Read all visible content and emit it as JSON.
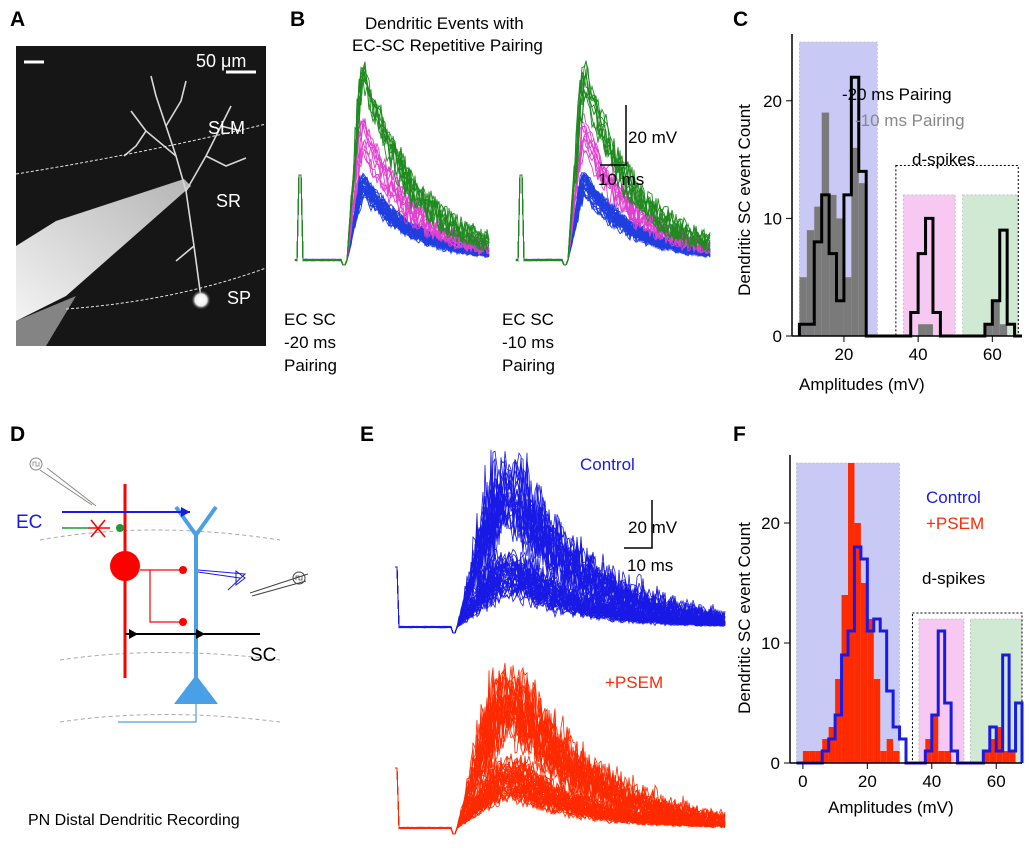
{
  "panels": {
    "A": {
      "letter": "A",
      "scale_bar": "50 μm",
      "layers": [
        "SLM",
        "SR",
        "SP"
      ]
    },
    "B": {
      "letter": "B",
      "title_line1": "Dendritic Events with",
      "title_line2": "EC-SC Repetitive Pairing",
      "scale_v": "20 mV",
      "scale_h": "10 ms",
      "left_label": [
        "EC SC",
        "-20 ms",
        "Pairing"
      ],
      "right_label": [
        "EC SC",
        "-10 ms",
        "Pairing"
      ],
      "colors": {
        "subthreshold": "#1f3fe0",
        "dspike_high": "#1f8a1f",
        "dspike_mid": "#e040d0"
      }
    },
    "C": {
      "letter": "C",
      "ylabel": "Dendritic SC event Count",
      "xlabel": "Amplitudes (mV)",
      "legend_black": "-20 ms Pairing",
      "legend_gray": "-10 ms Pairing",
      "dspikes": "d-spikes",
      "x_ticks": [
        "20",
        "40",
        "60"
      ],
      "y_ticks": [
        "0",
        "10",
        "20"
      ]
    },
    "D": {
      "letter": "D",
      "ec": "EC",
      "sc": "SC",
      "caption": "PN Distal Dendritic Recording"
    },
    "E": {
      "letter": "E",
      "control": "Control",
      "psem": "+PSEM",
      "scale_v": "20 mV",
      "scale_h": "10 ms"
    },
    "F": {
      "letter": "F",
      "ylabel": "Dendritic SC event Count",
      "xlabel": "Amplitudes (mV)",
      "legend_control": "Control",
      "legend_psem": "+PSEM",
      "dspikes": "d-spikes",
      "x_ticks": [
        "0",
        "20",
        "40",
        "60"
      ],
      "y_ticks": [
        "0",
        "10",
        "20"
      ]
    }
  },
  "chart_data": [
    {
      "type": "bar",
      "panel": "C",
      "xlabel": "Amplitudes (mV)",
      "ylabel": "Dendritic SC event Count",
      "xlim": [
        6,
        68
      ],
      "ylim": [
        0,
        25
      ],
      "bin_width": 2,
      "bin_starts": [
        8,
        10,
        12,
        14,
        16,
        18,
        20,
        22,
        24,
        26,
        28,
        30,
        32,
        34,
        36,
        38,
        40,
        42,
        44,
        46,
        48,
        50,
        52,
        54,
        56,
        58,
        60,
        62,
        64,
        66
      ],
      "series": [
        {
          "name": "-20 ms Pairing",
          "style": "step-outline",
          "color": "#000000",
          "values": [
            1,
            1,
            8,
            12,
            7,
            3,
            12,
            22,
            14,
            0,
            0,
            0,
            0,
            0,
            0,
            2,
            7,
            10,
            2,
            0,
            0,
            0,
            0,
            0,
            0,
            1,
            3,
            9,
            1,
            0
          ]
        },
        {
          "name": "-10 ms Pairing",
          "style": "filled",
          "color": "#7a7a7a",
          "values": [
            5,
            9,
            11,
            19,
            12,
            10,
            5,
            16,
            13,
            0,
            0,
            0,
            0,
            0,
            0,
            0,
            1,
            1,
            0,
            0,
            0,
            0,
            0,
            0,
            0,
            1,
            3,
            1,
            0,
            0
          ]
        }
      ],
      "shaded_regions": [
        {
          "from": 8,
          "to": 29,
          "color": "#c9c9f5"
        },
        {
          "from": 36,
          "to": 50,
          "color": "#f7c9f2"
        },
        {
          "from": 52,
          "to": 67,
          "color": "#cfe9d3"
        }
      ]
    },
    {
      "type": "bar",
      "panel": "F",
      "xlabel": "Amplitudes (mV)",
      "ylabel": "Dendritic SC event Count",
      "xlim": [
        -4,
        68
      ],
      "ylim": [
        0,
        25
      ],
      "bin_width": 2,
      "bin_starts": [
        -2,
        0,
        2,
        4,
        6,
        8,
        10,
        12,
        14,
        16,
        18,
        20,
        22,
        24,
        26,
        28,
        30,
        32,
        34,
        36,
        38,
        40,
        42,
        44,
        46,
        48,
        50,
        52,
        54,
        56,
        58,
        60,
        62,
        64,
        66
      ],
      "series": [
        {
          "name": "+PSEM",
          "style": "filled",
          "color": "#ff2a00",
          "values": [
            0,
            1,
            1,
            1,
            2,
            3,
            7,
            14,
            25,
            20,
            15,
            12,
            7,
            1,
            2,
            1,
            0,
            0,
            0,
            0,
            2,
            4,
            1,
            1,
            0,
            0,
            0,
            0,
            0,
            1,
            2,
            3,
            1,
            1,
            0
          ]
        },
        {
          "name": "Control",
          "style": "step-outline",
          "color": "#1a1ae6",
          "values": [
            0,
            0,
            0,
            0,
            1,
            2,
            4,
            9,
            11,
            18,
            17,
            11,
            12,
            11,
            6,
            3,
            2,
            0,
            0,
            0,
            1,
            4,
            11,
            5,
            1,
            0,
            0,
            0,
            0,
            1,
            3,
            1,
            9,
            1,
            5
          ]
        }
      ],
      "shaded_regions": [
        {
          "from": -2,
          "to": 30,
          "color": "#c9c9f5"
        },
        {
          "from": 36,
          "to": 50,
          "color": "#f7c9f2"
        },
        {
          "from": 52,
          "to": 68,
          "color": "#cfe9d3"
        }
      ]
    }
  ]
}
